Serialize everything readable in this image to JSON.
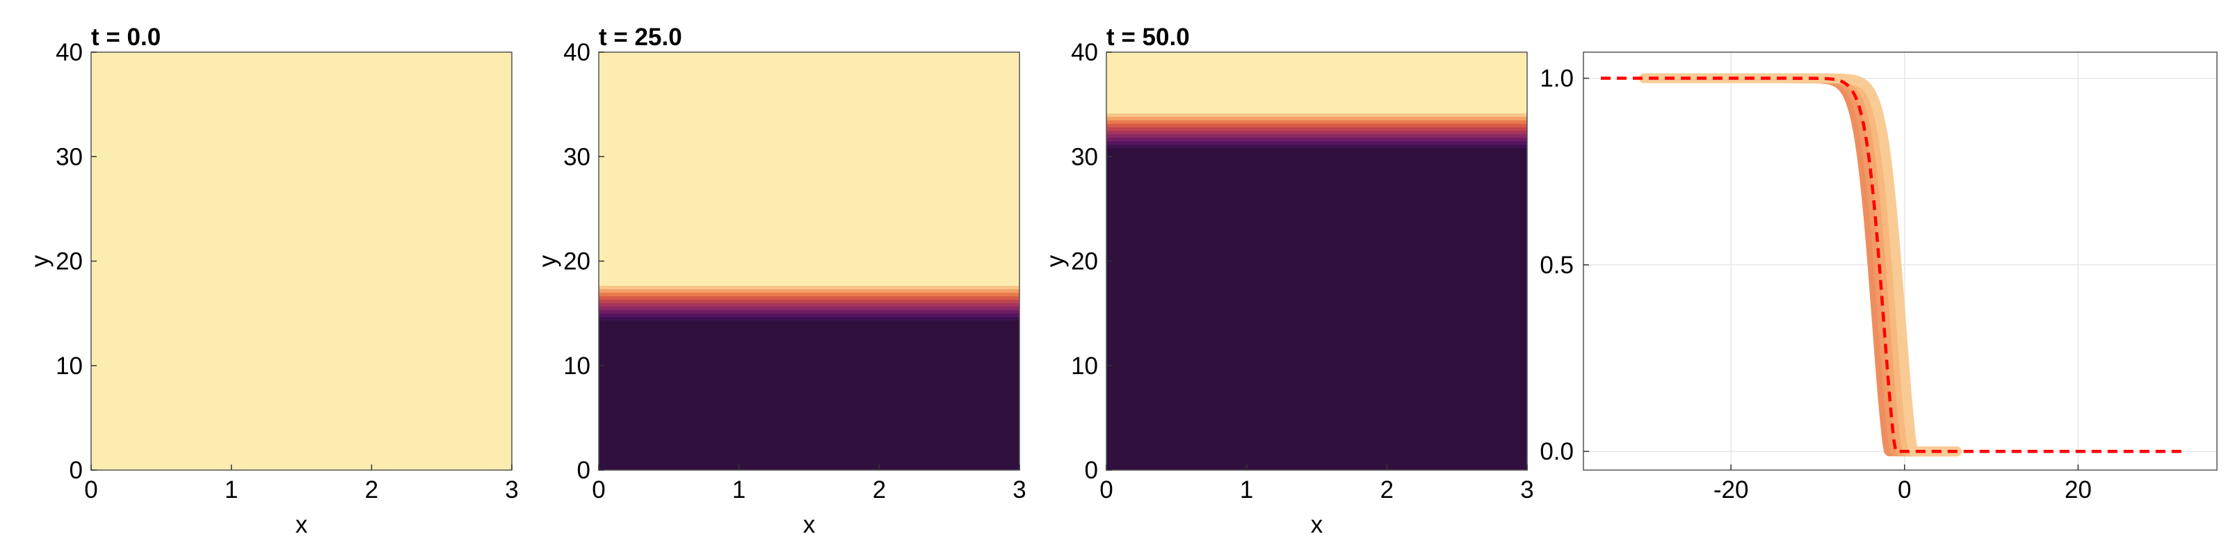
{
  "chart_data": [
    {
      "type": "heatmap",
      "title": "t = 0.0",
      "xlabel": "x",
      "ylabel": "y",
      "xlim": [
        0,
        3
      ],
      "ylim": [
        0,
        40
      ],
      "xticks": [
        "0",
        "1",
        "2",
        "3"
      ],
      "yticks": [
        "0",
        "10",
        "20",
        "30",
        "40"
      ],
      "front_y": null,
      "colors": {
        "high": "#fdecb0",
        "low": "#30103f"
      }
    },
    {
      "type": "heatmap",
      "title": "t = 25.0",
      "xlabel": "x",
      "ylabel": "y",
      "xlim": [
        0,
        3
      ],
      "ylim": [
        0,
        40
      ],
      "xticks": [
        "0",
        "1",
        "2",
        "3"
      ],
      "yticks": [
        "0",
        "10",
        "20",
        "30",
        "40"
      ],
      "front_y": 16.5,
      "colors": {
        "high": "#fdecb0",
        "low": "#30103f"
      }
    },
    {
      "type": "heatmap",
      "title": "t = 50.0",
      "xlabel": "x",
      "ylabel": "y",
      "xlim": [
        0,
        3
      ],
      "ylim": [
        0,
        40
      ],
      "xticks": [
        "0",
        "1",
        "2",
        "3"
      ],
      "yticks": [
        "0",
        "10",
        "20",
        "30",
        "40"
      ],
      "front_y": 33.0,
      "colors": {
        "high": "#fdecb0",
        "low": "#30103f"
      }
    },
    {
      "type": "line",
      "title": "",
      "xlabel": "",
      "ylabel": "",
      "xlim": [
        -37,
        36
      ],
      "ylim": [
        -0.05,
        1.07
      ],
      "xticks": [
        -20,
        0,
        20
      ],
      "xtick_labels": [
        "-20",
        "0",
        "20"
      ],
      "yticks": [
        0,
        0.5,
        1
      ],
      "ytick_labels": [
        "0.0",
        "0.5",
        "1.0"
      ],
      "grid": true,
      "band": {
        "centers": [
          -1.8,
          -1.1,
          -0.4,
          0.3,
          1.0
        ],
        "colors": [
          "#ee8e5f",
          "#f19a66",
          "#f4a86f",
          "#f7b97e",
          "#f9cb94"
        ]
      },
      "dashed": {
        "x_start": -35,
        "x_end": 32,
        "center": -1.0,
        "color": "#ff0000"
      }
    }
  ]
}
